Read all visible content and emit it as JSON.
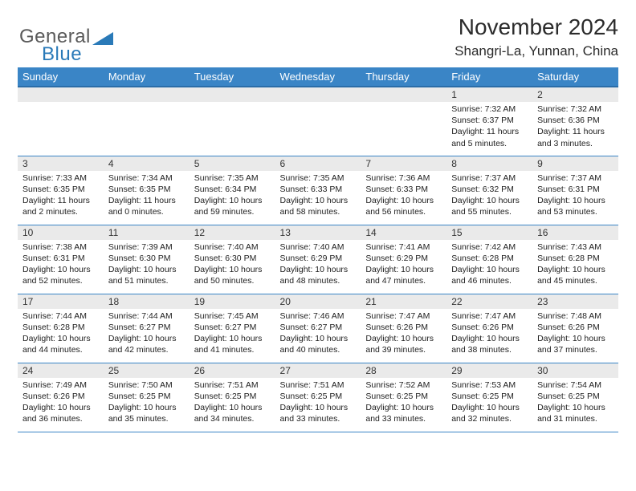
{
  "logo": {
    "text1": "General",
    "text2": "Blue"
  },
  "title": "November 2024",
  "location": "Shangri-La, Yunnan, China",
  "colors": {
    "header_bg": "#3a85c6",
    "header_border": "#2a6da8",
    "row_bg": "#eaeaea",
    "cell_border": "#3a85c6",
    "logo_gray": "#5a5a5a",
    "logo_blue": "#2a7ab8"
  },
  "weekdays": [
    "Sunday",
    "Monday",
    "Tuesday",
    "Wednesday",
    "Thursday",
    "Friday",
    "Saturday"
  ],
  "weeks": [
    [
      null,
      null,
      null,
      null,
      null,
      {
        "n": "1",
        "sr": "Sunrise: 7:32 AM",
        "ss": "Sunset: 6:37 PM",
        "dl": "Daylight: 11 hours and 5 minutes."
      },
      {
        "n": "2",
        "sr": "Sunrise: 7:32 AM",
        "ss": "Sunset: 6:36 PM",
        "dl": "Daylight: 11 hours and 3 minutes."
      }
    ],
    [
      {
        "n": "3",
        "sr": "Sunrise: 7:33 AM",
        "ss": "Sunset: 6:35 PM",
        "dl": "Daylight: 11 hours and 2 minutes."
      },
      {
        "n": "4",
        "sr": "Sunrise: 7:34 AM",
        "ss": "Sunset: 6:35 PM",
        "dl": "Daylight: 11 hours and 0 minutes."
      },
      {
        "n": "5",
        "sr": "Sunrise: 7:35 AM",
        "ss": "Sunset: 6:34 PM",
        "dl": "Daylight: 10 hours and 59 minutes."
      },
      {
        "n": "6",
        "sr": "Sunrise: 7:35 AM",
        "ss": "Sunset: 6:33 PM",
        "dl": "Daylight: 10 hours and 58 minutes."
      },
      {
        "n": "7",
        "sr": "Sunrise: 7:36 AM",
        "ss": "Sunset: 6:33 PM",
        "dl": "Daylight: 10 hours and 56 minutes."
      },
      {
        "n": "8",
        "sr": "Sunrise: 7:37 AM",
        "ss": "Sunset: 6:32 PM",
        "dl": "Daylight: 10 hours and 55 minutes."
      },
      {
        "n": "9",
        "sr": "Sunrise: 7:37 AM",
        "ss": "Sunset: 6:31 PM",
        "dl": "Daylight: 10 hours and 53 minutes."
      }
    ],
    [
      {
        "n": "10",
        "sr": "Sunrise: 7:38 AM",
        "ss": "Sunset: 6:31 PM",
        "dl": "Daylight: 10 hours and 52 minutes."
      },
      {
        "n": "11",
        "sr": "Sunrise: 7:39 AM",
        "ss": "Sunset: 6:30 PM",
        "dl": "Daylight: 10 hours and 51 minutes."
      },
      {
        "n": "12",
        "sr": "Sunrise: 7:40 AM",
        "ss": "Sunset: 6:30 PM",
        "dl": "Daylight: 10 hours and 50 minutes."
      },
      {
        "n": "13",
        "sr": "Sunrise: 7:40 AM",
        "ss": "Sunset: 6:29 PM",
        "dl": "Daylight: 10 hours and 48 minutes."
      },
      {
        "n": "14",
        "sr": "Sunrise: 7:41 AM",
        "ss": "Sunset: 6:29 PM",
        "dl": "Daylight: 10 hours and 47 minutes."
      },
      {
        "n": "15",
        "sr": "Sunrise: 7:42 AM",
        "ss": "Sunset: 6:28 PM",
        "dl": "Daylight: 10 hours and 46 minutes."
      },
      {
        "n": "16",
        "sr": "Sunrise: 7:43 AM",
        "ss": "Sunset: 6:28 PM",
        "dl": "Daylight: 10 hours and 45 minutes."
      }
    ],
    [
      {
        "n": "17",
        "sr": "Sunrise: 7:44 AM",
        "ss": "Sunset: 6:28 PM",
        "dl": "Daylight: 10 hours and 44 minutes."
      },
      {
        "n": "18",
        "sr": "Sunrise: 7:44 AM",
        "ss": "Sunset: 6:27 PM",
        "dl": "Daylight: 10 hours and 42 minutes."
      },
      {
        "n": "19",
        "sr": "Sunrise: 7:45 AM",
        "ss": "Sunset: 6:27 PM",
        "dl": "Daylight: 10 hours and 41 minutes."
      },
      {
        "n": "20",
        "sr": "Sunrise: 7:46 AM",
        "ss": "Sunset: 6:27 PM",
        "dl": "Daylight: 10 hours and 40 minutes."
      },
      {
        "n": "21",
        "sr": "Sunrise: 7:47 AM",
        "ss": "Sunset: 6:26 PM",
        "dl": "Daylight: 10 hours and 39 minutes."
      },
      {
        "n": "22",
        "sr": "Sunrise: 7:47 AM",
        "ss": "Sunset: 6:26 PM",
        "dl": "Daylight: 10 hours and 38 minutes."
      },
      {
        "n": "23",
        "sr": "Sunrise: 7:48 AM",
        "ss": "Sunset: 6:26 PM",
        "dl": "Daylight: 10 hours and 37 minutes."
      }
    ],
    [
      {
        "n": "24",
        "sr": "Sunrise: 7:49 AM",
        "ss": "Sunset: 6:26 PM",
        "dl": "Daylight: 10 hours and 36 minutes."
      },
      {
        "n": "25",
        "sr": "Sunrise: 7:50 AM",
        "ss": "Sunset: 6:25 PM",
        "dl": "Daylight: 10 hours and 35 minutes."
      },
      {
        "n": "26",
        "sr": "Sunrise: 7:51 AM",
        "ss": "Sunset: 6:25 PM",
        "dl": "Daylight: 10 hours and 34 minutes."
      },
      {
        "n": "27",
        "sr": "Sunrise: 7:51 AM",
        "ss": "Sunset: 6:25 PM",
        "dl": "Daylight: 10 hours and 33 minutes."
      },
      {
        "n": "28",
        "sr": "Sunrise: 7:52 AM",
        "ss": "Sunset: 6:25 PM",
        "dl": "Daylight: 10 hours and 33 minutes."
      },
      {
        "n": "29",
        "sr": "Sunrise: 7:53 AM",
        "ss": "Sunset: 6:25 PM",
        "dl": "Daylight: 10 hours and 32 minutes."
      },
      {
        "n": "30",
        "sr": "Sunrise: 7:54 AM",
        "ss": "Sunset: 6:25 PM",
        "dl": "Daylight: 10 hours and 31 minutes."
      }
    ]
  ]
}
